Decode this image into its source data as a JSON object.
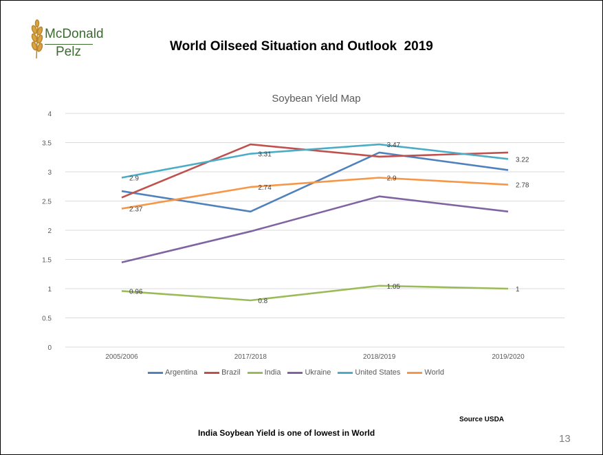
{
  "slide": {
    "logo_line1": "McDonald",
    "logo_line2": "Pelz",
    "title": "World Oilseed Situation and Outlook  2019",
    "footer_note": "India Soybean Yield is one of lowest in World",
    "source": "Source USDA",
    "page_number": "13"
  },
  "chart_data": {
    "type": "line",
    "title": "Soybean Yield Map",
    "xlabel": "",
    "ylabel": "",
    "categories": [
      "2005/2006",
      "2017/2018",
      "2018/2019",
      "2019/2020"
    ],
    "ylim": [
      0,
      4
    ],
    "yticks": [
      "0",
      "0.5",
      "1",
      "1.5",
      "2",
      "2.5",
      "3",
      "3.5",
      "4"
    ],
    "grid": true,
    "legend_position": "bottom",
    "series": [
      {
        "name": "Argentina",
        "color": "#4f81bd",
        "values": [
          2.67,
          2.32,
          3.33,
          3.03
        ],
        "labels": null
      },
      {
        "name": "Brazil",
        "color": "#c0504d",
        "values": [
          2.56,
          3.47,
          3.26,
          3.33
        ],
        "labels": null
      },
      {
        "name": "India",
        "color": "#9bbb59",
        "values": [
          0.96,
          0.8,
          1.05,
          1
        ],
        "labels": [
          "0.96",
          "0.8",
          "1.05",
          "1"
        ]
      },
      {
        "name": "Ukraine",
        "color": "#8064a2",
        "values": [
          1.45,
          1.98,
          2.58,
          2.32
        ],
        "labels": null
      },
      {
        "name": "United States",
        "color": "#4bacc6",
        "values": [
          2.9,
          3.31,
          3.47,
          3.22
        ],
        "labels": [
          "2.9",
          "3.31",
          "3.47",
          "3.22"
        ]
      },
      {
        "name": "World",
        "color": "#f79646",
        "values": [
          2.37,
          2.74,
          2.9,
          2.78
        ],
        "labels": [
          "2.37",
          "2.74",
          "2.9",
          "2.78"
        ]
      }
    ]
  }
}
